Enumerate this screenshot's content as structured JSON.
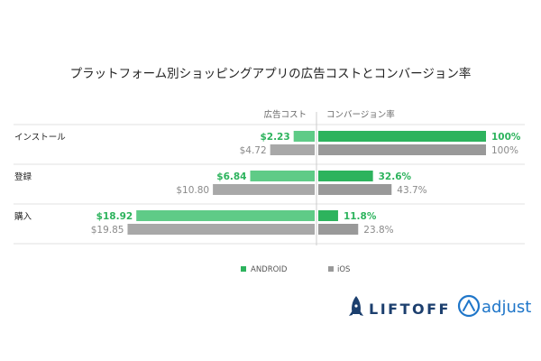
{
  "chart_data": {
    "type": "bar",
    "title": "プラットフォーム別ショッピングアプリの広告コストとコンバージョン率",
    "left_header": "広告コスト",
    "right_header": "コンバージョン率",
    "categories": [
      "インストール",
      "登録",
      "購入"
    ],
    "series": [
      {
        "name": "ANDROID",
        "cost": [
          2.23,
          6.84,
          18.92
        ],
        "cost_labels": [
          "$2.23",
          "$6.84",
          "$18.92"
        ],
        "conversion": [
          100,
          32.6,
          11.8
        ],
        "conversion_labels": [
          "100%",
          "32.6%",
          "11.8%"
        ],
        "color": "#2db35d",
        "cost_color": "#5fcb87"
      },
      {
        "name": "iOS",
        "cost": [
          4.72,
          10.8,
          19.85
        ],
        "cost_labels": [
          "$4.72",
          "$10.80",
          "$19.85"
        ],
        "conversion": [
          100,
          43.7,
          23.8
        ],
        "conversion_labels": [
          "100%",
          "43.7%",
          "23.8%"
        ],
        "color": "#999999",
        "cost_color": "#a8a8a8"
      }
    ],
    "cost_max": 22,
    "conversion_max": 100,
    "legend_position": "bottom-center"
  },
  "logos": {
    "liftoff": "LIFTOFF",
    "adjust": "adjust"
  }
}
